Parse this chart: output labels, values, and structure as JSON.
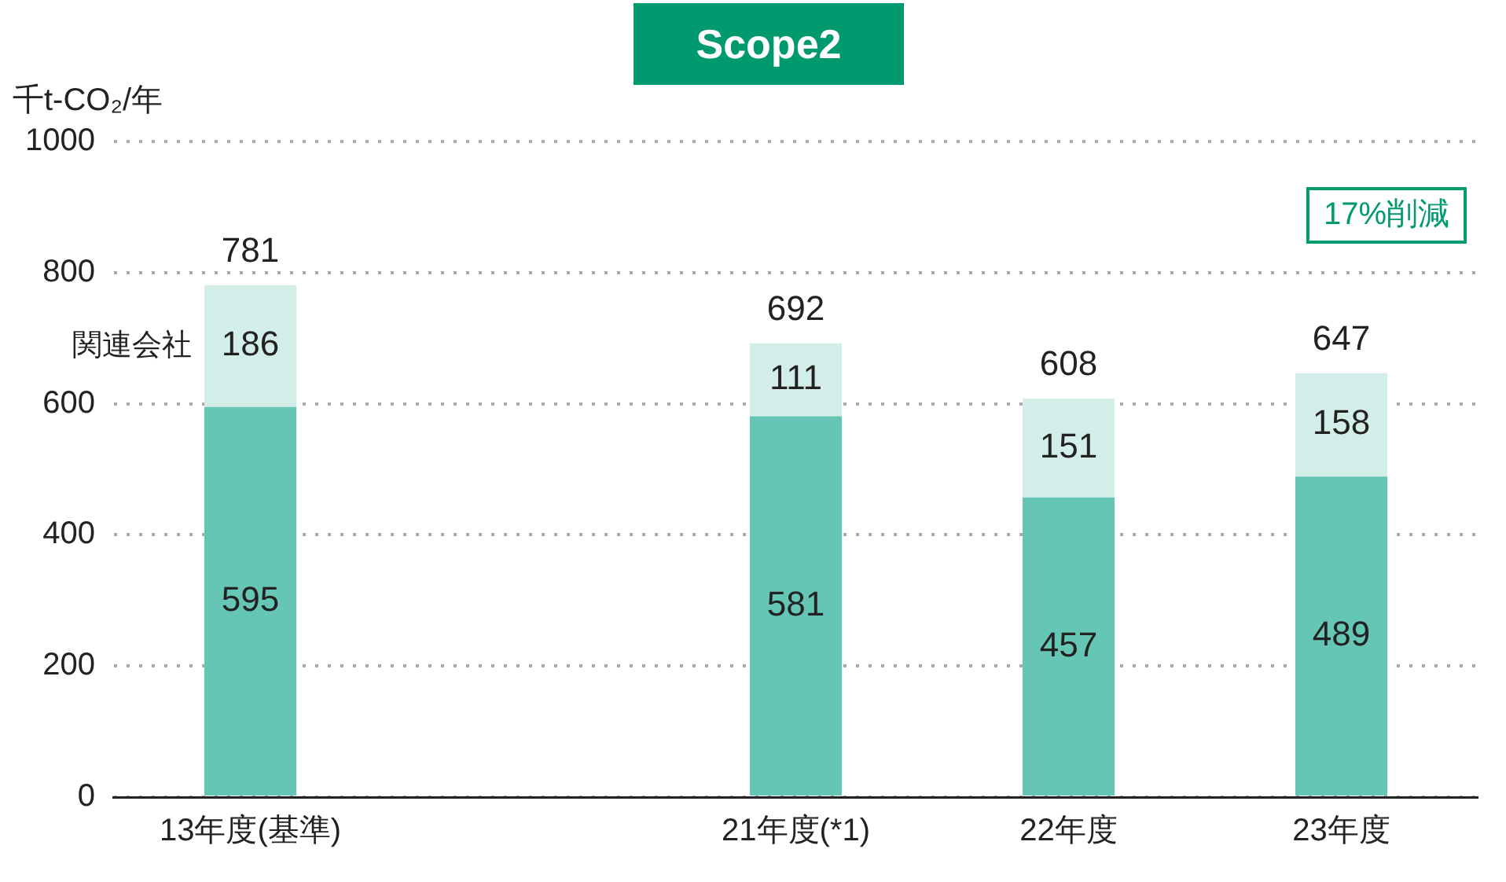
{
  "chart_data": {
    "type": "bar",
    "title": "Scope2",
    "ylabel": "千t-CO₂/年",
    "categories": [
      "13年度(基準)",
      null,
      "21年度(*1)",
      "22年度",
      "23年度"
    ],
    "stacked": true,
    "series": [
      {
        "color": "#66c6b5",
        "values": [
          595,
          null,
          581,
          457,
          489
        ]
      },
      {
        "name": "関連会社",
        "color": "#d3ede8",
        "values": [
          186,
          null,
          111,
          151,
          158
        ]
      }
    ],
    "totals": [
      "781",
      null,
      "692",
      "608",
      "647"
    ],
    "data_labels": true,
    "annotations": [
      "17%削減"
    ],
    "ylim": [
      0,
      1000
    ],
    "yticks": [
      0,
      200,
      400,
      600,
      800,
      1000
    ],
    "grid": "y",
    "legend": false
  }
}
